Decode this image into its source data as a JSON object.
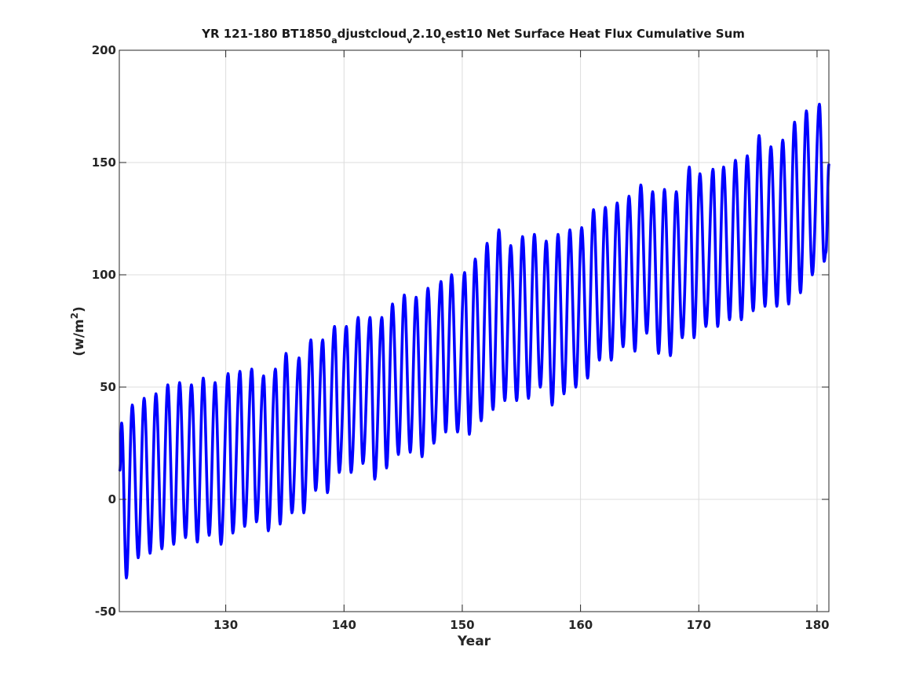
{
  "chart_data": {
    "type": "line",
    "title_parts": {
      "prefix": "YR 121-180 BT1850",
      "sub1": "a",
      "mid1": "djustcloud",
      "sub2": "v",
      "mid2": "2.10",
      "sub3": "t",
      "suffix": "est10 Net Surface Heat Flux  Cumulative Sum"
    },
    "xlabel": "Year",
    "ylabel": "(w/m²)",
    "ylabel_base": "(w/m",
    "ylabel_sup": "2",
    "ylabel_end": ")",
    "xlim": [
      121,
      181
    ],
    "ylim": [
      -50,
      200
    ],
    "xticks": [
      130,
      140,
      150,
      160,
      170,
      180
    ],
    "yticks": [
      -50,
      0,
      50,
      100,
      150,
      200
    ],
    "grid": true,
    "line_color": "#0000ff",
    "series": [
      {
        "peaks": [
          [
            121.2,
            34
          ],
          [
            122.1,
            42
          ],
          [
            123.1,
            45
          ],
          [
            124.1,
            47
          ],
          [
            125.1,
            51
          ],
          [
            126.1,
            52
          ],
          [
            127.1,
            51
          ],
          [
            128.1,
            54
          ],
          [
            129.1,
            52
          ],
          [
            130.2,
            56
          ],
          [
            131.2,
            57
          ],
          [
            132.2,
            58
          ],
          [
            133.2,
            55
          ],
          [
            134.2,
            58
          ],
          [
            135.1,
            65
          ],
          [
            136.2,
            63
          ],
          [
            137.2,
            71
          ],
          [
            138.2,
            71
          ],
          [
            139.2,
            77
          ],
          [
            140.2,
            77
          ],
          [
            141.2,
            81
          ],
          [
            142.2,
            81
          ],
          [
            143.2,
            81
          ],
          [
            144.1,
            87
          ],
          [
            145.1,
            91
          ],
          [
            146.1,
            90
          ],
          [
            147.1,
            94
          ],
          [
            148.2,
            97
          ],
          [
            149.1,
            100
          ],
          [
            150.2,
            101
          ],
          [
            151.1,
            107
          ],
          [
            152.1,
            114
          ],
          [
            153.1,
            120
          ],
          [
            154.1,
            113
          ],
          [
            155.1,
            117
          ],
          [
            156.1,
            118
          ],
          [
            157.1,
            115
          ],
          [
            158.1,
            118
          ],
          [
            159.1,
            120
          ],
          [
            160.1,
            121
          ],
          [
            161.1,
            129
          ],
          [
            162.1,
            130
          ],
          [
            163.1,
            132
          ],
          [
            164.1,
            135
          ],
          [
            165.1,
            140
          ],
          [
            166.1,
            137
          ],
          [
            167.1,
            138
          ],
          [
            168.1,
            137
          ],
          [
            169.2,
            148
          ],
          [
            170.1,
            145
          ],
          [
            171.2,
            147
          ],
          [
            172.1,
            148
          ],
          [
            173.1,
            151
          ],
          [
            174.1,
            153
          ],
          [
            175.1,
            162
          ],
          [
            176.1,
            157
          ],
          [
            177.1,
            160
          ],
          [
            178.1,
            168
          ],
          [
            179.1,
            173
          ],
          [
            180.2,
            176
          ]
        ],
        "troughs": [
          [
            121.6,
            -35
          ],
          [
            122.6,
            -26
          ],
          [
            123.6,
            -24
          ],
          [
            124.6,
            -22
          ],
          [
            125.6,
            -20
          ],
          [
            126.6,
            -17
          ],
          [
            127.6,
            -19
          ],
          [
            128.6,
            -16
          ],
          [
            129.6,
            -20
          ],
          [
            130.6,
            -15
          ],
          [
            131.6,
            -12
          ],
          [
            132.6,
            -10
          ],
          [
            133.6,
            -14
          ],
          [
            134.6,
            -11
          ],
          [
            135.6,
            -6
          ],
          [
            136.6,
            -6
          ],
          [
            137.6,
            4
          ],
          [
            138.6,
            3
          ],
          [
            139.6,
            12
          ],
          [
            140.6,
            12
          ],
          [
            141.6,
            16
          ],
          [
            142.6,
            9
          ],
          [
            143.6,
            14
          ],
          [
            144.6,
            20
          ],
          [
            145.6,
            21
          ],
          [
            146.6,
            19
          ],
          [
            147.6,
            25
          ],
          [
            148.6,
            30
          ],
          [
            149.6,
            30
          ],
          [
            150.6,
            29
          ],
          [
            151.6,
            35
          ],
          [
            152.6,
            40
          ],
          [
            153.6,
            44
          ],
          [
            154.6,
            44
          ],
          [
            155.6,
            45
          ],
          [
            156.6,
            50
          ],
          [
            157.6,
            42
          ],
          [
            158.6,
            47
          ],
          [
            159.6,
            50
          ],
          [
            160.6,
            54
          ],
          [
            161.6,
            62
          ],
          [
            162.6,
            62
          ],
          [
            163.6,
            68
          ],
          [
            164.6,
            66
          ],
          [
            165.6,
            74
          ],
          [
            166.6,
            65
          ],
          [
            167.6,
            64
          ],
          [
            168.6,
            72
          ],
          [
            169.6,
            72
          ],
          [
            170.6,
            77
          ],
          [
            171.6,
            77
          ],
          [
            172.6,
            80
          ],
          [
            173.6,
            80
          ],
          [
            174.6,
            84
          ],
          [
            175.6,
            86
          ],
          [
            176.6,
            86
          ],
          [
            177.6,
            87
          ],
          [
            178.6,
            92
          ],
          [
            179.6,
            100
          ],
          [
            180.6,
            106
          ]
        ],
        "start": [
          121.05,
          13
        ],
        "end": [
          181.0,
          149
        ],
        "end_trough": [
          180.75,
          110
        ]
      }
    ]
  }
}
